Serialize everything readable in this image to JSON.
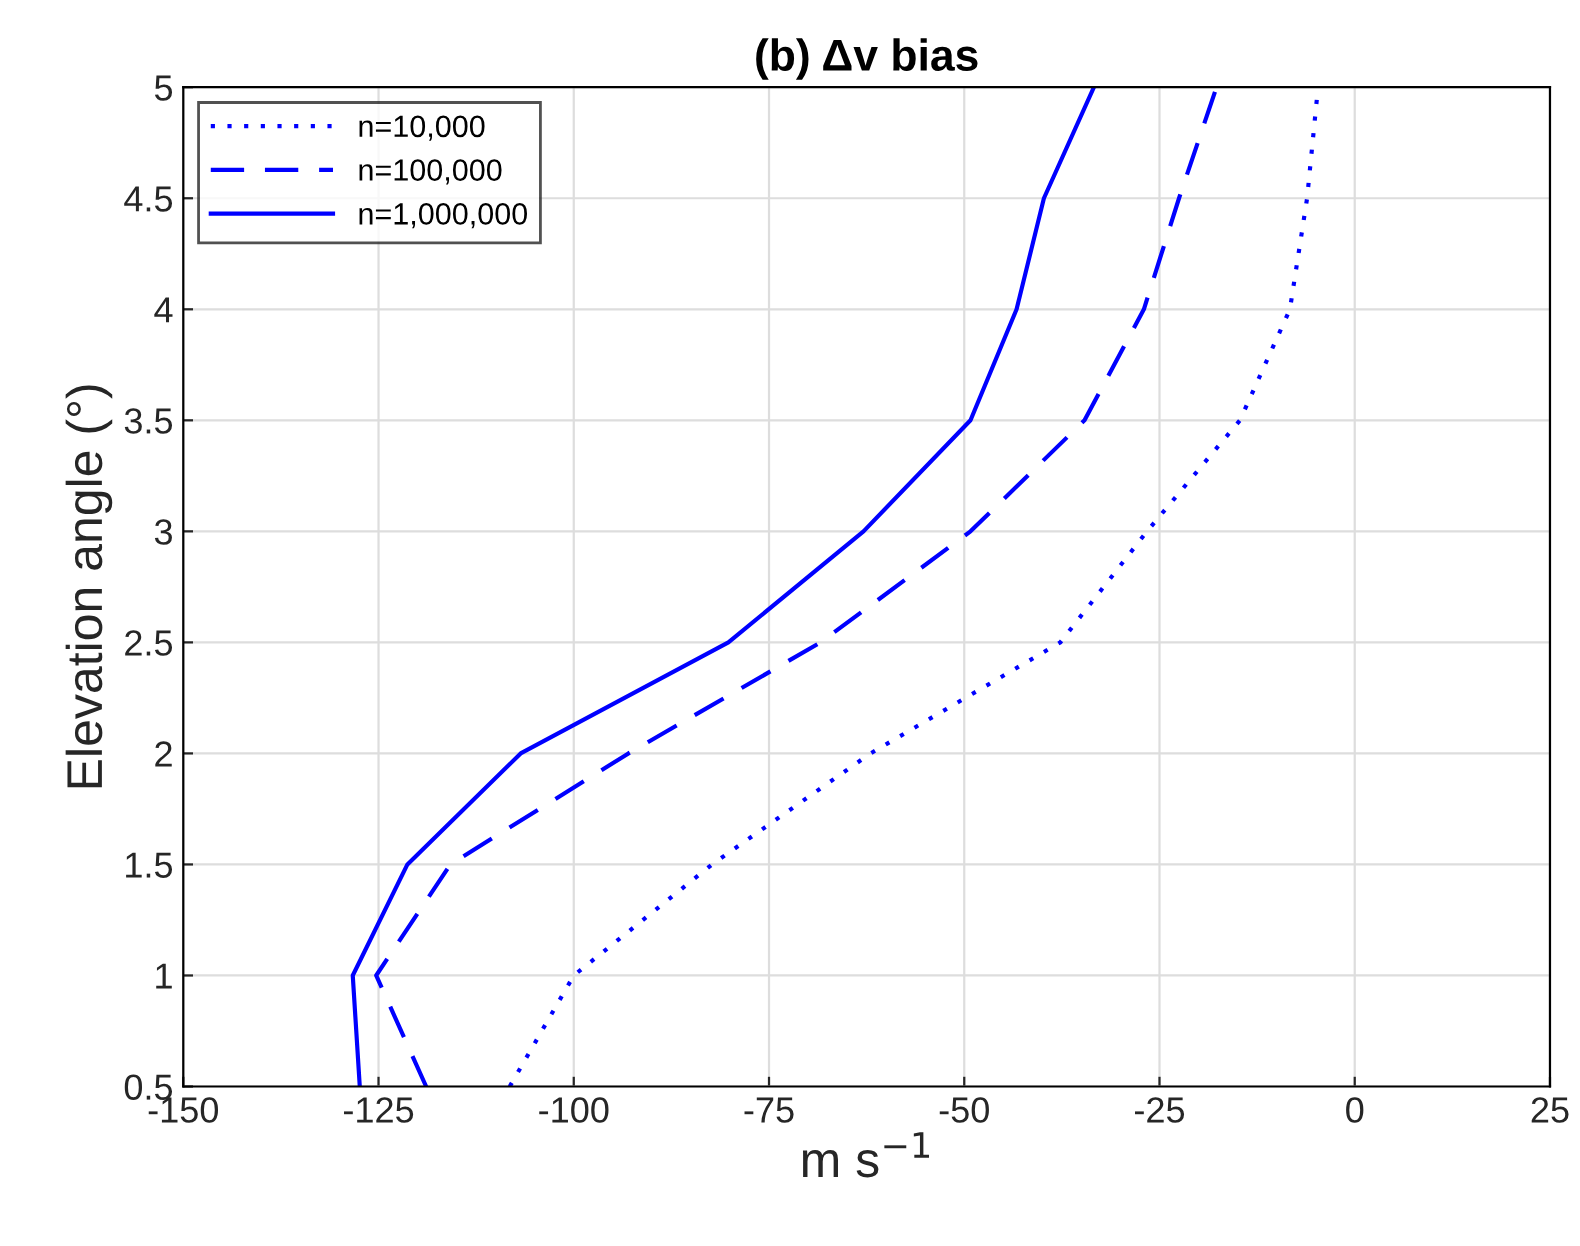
{
  "chart_data": {
    "type": "line",
    "title": "(b) Δv bias",
    "xlabel": "m s$^{−1}$",
    "ylabel": "Elevation angle (°)",
    "xlim": [
      -150,
      25
    ],
    "xticks": [
      -150,
      -125,
      -100,
      -75,
      -50,
      -25,
      0,
      25
    ],
    "ylim": [
      0.5,
      5
    ],
    "yticks": [
      0.5,
      1,
      1.5,
      2,
      2.5,
      3,
      3.5,
      4,
      4.5,
      5
    ],
    "grid": true,
    "legend": "top left",
    "series": [
      {
        "name": "n=10,000",
        "color": "#0000ff",
        "line_style": "dotted",
        "x": [
          -108.2,
          -100,
          -82.3,
          -62,
          -37.7,
          -26.6,
          -14.7,
          -8.3,
          -6.1,
          -4.7
        ],
        "values": [
          0.5,
          1,
          1.5,
          2,
          2.5,
          3,
          3.5,
          4,
          4.5,
          5
        ]
      },
      {
        "name": "n=100,000",
        "color": "#0000ff",
        "line_style": "dashed",
        "x": [
          -118.9,
          -125.3,
          -115.8,
          -93,
          -68.4,
          -49.2,
          -34.6,
          -27.0,
          -22.5,
          -17.7
        ],
        "values": [
          0.5,
          1,
          1.5,
          2,
          2.5,
          3,
          3.5,
          4,
          4.5,
          5
        ]
      },
      {
        "name": "n=1,000,000",
        "color": "#0000ff",
        "line_style": "solid",
        "x": [
          -127.4,
          -128.3,
          -121.3,
          -106.8,
          -80.2,
          -62.9,
          -49.2,
          -43.3,
          -39.8,
          -33.4
        ],
        "values": [
          0.5,
          1,
          1.5,
          2,
          2.5,
          3,
          3.5,
          4,
          4.5,
          5
        ]
      }
    ]
  }
}
